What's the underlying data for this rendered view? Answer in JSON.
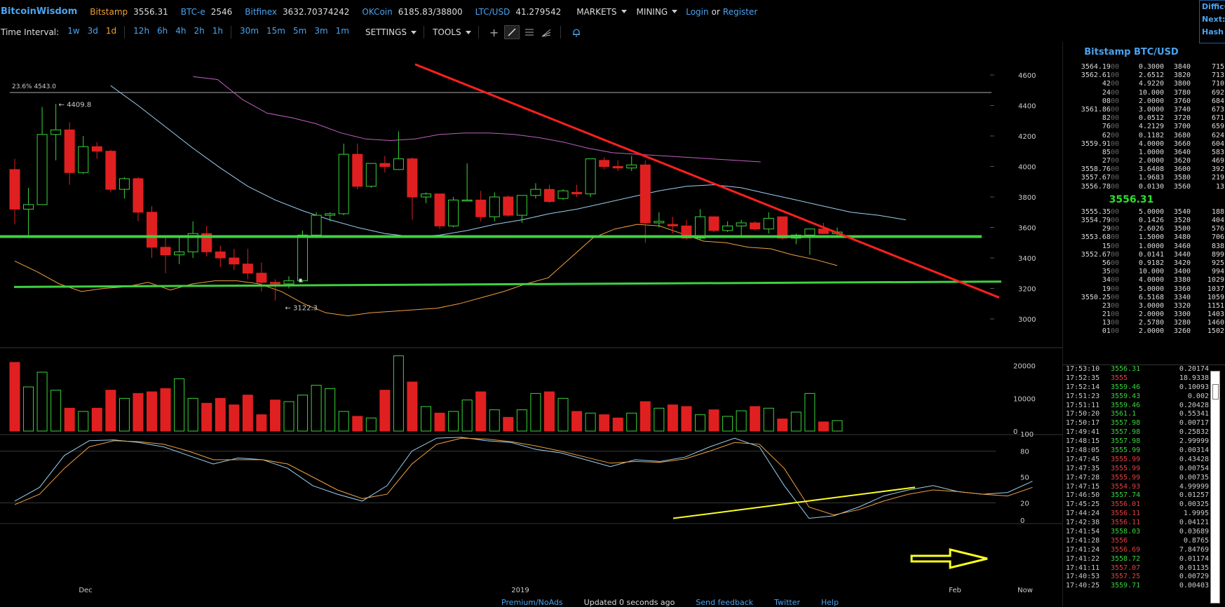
{
  "topbar": {
    "brand": "BitcoinWisdom",
    "tickers": [
      {
        "name": "Bitstamp",
        "value": "3556.31",
        "color": "#f0a030"
      },
      {
        "name": "BTC-e",
        "value": "2546",
        "color": "#4aa3f0"
      },
      {
        "name": "Bitfinex",
        "value": "3632.70374242",
        "color": "#4aa3f0"
      },
      {
        "name": "OKCoin",
        "value": "6185.83/38800",
        "color": "#4aa3f0"
      },
      {
        "name": "LTC/USD",
        "value": "41.279542",
        "color": "#4aa3f0"
      }
    ],
    "markets": "MARKETS",
    "mining": "MINING",
    "login": "Login",
    "or": "or",
    "register": "Register"
  },
  "difficulty": {
    "l1": "Difficu",
    "l2": "Next:",
    "l3": "Hash R"
  },
  "toolbar": {
    "time_interval": "Time Interval:",
    "intervals": [
      "1w",
      "3d",
      "1d",
      "12h",
      "6h",
      "4h",
      "2h",
      "1h",
      "30m",
      "15m",
      "5m",
      "3m",
      "1m"
    ],
    "active_interval": "1d",
    "settings": "SETTINGS",
    "tools": "TOOLS"
  },
  "chart_data": {
    "type": "candlestick",
    "fib_label": "23.6% 4543.0",
    "high_label": "← 4409.8",
    "low_label": "← 3122.3",
    "price_axis": [
      "4600",
      "4400",
      "4200",
      "4000",
      "3800",
      "3600",
      "3400",
      "3200",
      "3000"
    ],
    "volume_axis": [
      "20000",
      "10000",
      "0"
    ],
    "osc_axis": [
      "100",
      "80",
      "50",
      "20",
      "0"
    ],
    "x_labels": [
      "Dec",
      "2019",
      "Feb",
      "Now"
    ],
    "colors": {
      "up": "#3ad43a",
      "down": "#e02020",
      "upper_band": "#c060c0",
      "mid_band": "#9ad0f0",
      "lower_band": "#f0a040",
      "trend_down": "#ff2020",
      "support": "#40d040",
      "annotation": "#ffff20"
    },
    "candles": [
      [
        3980,
        4050,
        3620,
        3720
      ],
      [
        3720,
        3860,
        3540,
        3750
      ],
      [
        3750,
        4390,
        3750,
        4210
      ],
      [
        4210,
        4410,
        4040,
        4240
      ],
      [
        4240,
        4290,
        3880,
        3960
      ],
      [
        3960,
        4200,
        3950,
        4130
      ],
      [
        4130,
        4160,
        4050,
        4100
      ],
      [
        4100,
        4110,
        3830,
        3850
      ],
      [
        3850,
        3930,
        3790,
        3920
      ],
      [
        3920,
        3930,
        3640,
        3700
      ],
      [
        3700,
        3740,
        3400,
        3470
      ],
      [
        3470,
        3540,
        3300,
        3420
      ],
      [
        3420,
        3540,
        3360,
        3440
      ],
      [
        3440,
        3640,
        3400,
        3560
      ],
      [
        3560,
        3610,
        3410,
        3440
      ],
      [
        3440,
        3480,
        3340,
        3400
      ],
      [
        3400,
        3460,
        3320,
        3360
      ],
      [
        3360,
        3460,
        3260,
        3300
      ],
      [
        3300,
        3370,
        3180,
        3240
      ],
      [
        3240,
        3260,
        3120,
        3230
      ],
      [
        3230,
        3280,
        3200,
        3250
      ],
      [
        3250,
        3580,
        3240,
        3550
      ],
      [
        3550,
        3700,
        3530,
        3680
      ],
      [
        3680,
        3700,
        3640,
        3690
      ],
      [
        3690,
        4150,
        3680,
        4080
      ],
      [
        4080,
        4150,
        3850,
        3870
      ],
      [
        3870,
        4020,
        3860,
        4020
      ],
      [
        4020,
        4070,
        3960,
        4000
      ],
      [
        3980,
        4230,
        3980,
        4050
      ],
      [
        4050,
        4060,
        3650,
        3800
      ],
      [
        3800,
        3830,
        3760,
        3820
      ],
      [
        3820,
        3820,
        3590,
        3610
      ],
      [
        3610,
        3800,
        3600,
        3780
      ],
      [
        3780,
        4020,
        3770,
        3780
      ],
      [
        3780,
        3840,
        3640,
        3670
      ],
      [
        3670,
        3830,
        3640,
        3800
      ],
      [
        3800,
        3810,
        3670,
        3680
      ],
      [
        3680,
        3810,
        3630,
        3810
      ],
      [
        3810,
        3890,
        3790,
        3850
      ],
      [
        3850,
        3880,
        3760,
        3770
      ],
      [
        3790,
        3850,
        3780,
        3840
      ],
      [
        3830,
        3880,
        3800,
        3820
      ],
      [
        3820,
        4040,
        3800,
        4050
      ],
      [
        4040,
        4060,
        3980,
        4000
      ],
      [
        4000,
        4040,
        3970,
        3990
      ],
      [
        3990,
        4070,
        3970,
        4010
      ],
      [
        4010,
        4040,
        3500,
        3630
      ],
      [
        3630,
        3700,
        3600,
        3640
      ],
      [
        3620,
        3670,
        3560,
        3610
      ],
      [
        3610,
        3650,
        3520,
        3530
      ],
      [
        3530,
        3720,
        3520,
        3670
      ],
      [
        3670,
        3670,
        3570,
        3580
      ],
      [
        3580,
        3640,
        3570,
        3610
      ],
      [
        3610,
        3650,
        3540,
        3630
      ],
      [
        3630,
        3640,
        3580,
        3590
      ],
      [
        3590,
        3700,
        3560,
        3660
      ],
      [
        3670,
        3670,
        3520,
        3530
      ],
      [
        3530,
        3560,
        3490,
        3550
      ],
      [
        3550,
        3590,
        3420,
        3590
      ],
      [
        3590,
        3630,
        3560,
        3560
      ],
      [
        3560,
        3600,
        3540,
        3570
      ]
    ],
    "volumes": [
      21000,
      13500,
      18000,
      12500,
      7000,
      6000,
      7000,
      12500,
      10000,
      11500,
      12000,
      13000,
      16000,
      10000,
      8500,
      10000,
      8000,
      11000,
      5000,
      9500,
      9000,
      11000,
      14000,
      13000,
      6000,
      4500,
      4000,
      12500,
      23000,
      15000,
      7500,
      5500,
      6000,
      9500,
      12000,
      6500,
      4200,
      6500,
      11500,
      12000,
      10000,
      6000,
      5500,
      5000,
      4000,
      5500,
      9000,
      7000,
      8000,
      7500,
      5000,
      6500,
      4500,
      6200,
      7500,
      7000,
      3700,
      5800,
      11500,
      2800,
      3200
    ],
    "mid_band": [
      4530,
      4400,
      4260,
      4120,
      3990,
      3870,
      3780,
      3710,
      3650,
      3600,
      3560,
      3540,
      3550,
      3580,
      3620,
      3650,
      3690,
      3720,
      3760,
      3800,
      3840,
      3870,
      3880,
      3860,
      3820,
      3780,
      3740,
      3700,
      3680,
      3650
    ],
    "upper_band": [
      4590,
      4570,
      4440,
      4350,
      4320,
      4280,
      4220,
      4180,
      4170,
      4180,
      4210,
      4220,
      4220,
      4210,
      4190,
      4160,
      4120,
      4090,
      4080,
      4070,
      4060,
      4050,
      4040,
      4030
    ],
    "lower_band": [
      3380,
      3310,
      3230,
      3180,
      3200,
      3210,
      3240,
      3190,
      3230,
      3250,
      3250,
      3230,
      3180,
      3100,
      3040,
      3020,
      3040,
      3050,
      3060,
      3070,
      3100,
      3140,
      3180,
      3230,
      3270,
      3400,
      3530,
      3590,
      3620,
      3610,
      3560,
      3510,
      3500,
      3470,
      3460,
      3420,
      3390,
      3350
    ],
    "osc_k": [
      22,
      38,
      75,
      92,
      93,
      90,
      85,
      75,
      65,
      72,
      70,
      60,
      40,
      30,
      22,
      40,
      80,
      95,
      96,
      92,
      90,
      82,
      78,
      70,
      62,
      70,
      68,
      73,
      85,
      95,
      85,
      40,
      2,
      5,
      15,
      28,
      35,
      40,
      33,
      30,
      32,
      45
    ],
    "osc_d": [
      18,
      30,
      60,
      85,
      92,
      91,
      88,
      80,
      70,
      70,
      70,
      65,
      50,
      35,
      25,
      30,
      65,
      88,
      95,
      94,
      91,
      86,
      80,
      73,
      66,
      68,
      67,
      71,
      80,
      90,
      88,
      60,
      15,
      6,
      12,
      22,
      30,
      35,
      33,
      30,
      28,
      38
    ]
  },
  "right_panel": {
    "title": "Bitstamp BTC/USD",
    "asks": [
      [
        "3564.19",
        "00",
        "0.3000",
        "3840",
        "715"
      ],
      [
        "3562.61",
        "00",
        "2.6512",
        "3820",
        "713"
      ],
      [
        "42",
        "00",
        "4.9220",
        "3800",
        "710"
      ],
      [
        "24",
        "00",
        "10.000",
        "3780",
        "692"
      ],
      [
        "08",
        "00",
        "2.0000",
        "3760",
        "684"
      ],
      [
        "3561.86",
        "00",
        "3.0000",
        "3740",
        "673"
      ],
      [
        "82",
        "00",
        "0.0512",
        "3720",
        "671"
      ],
      [
        "76",
        "00",
        "4.2129",
        "3700",
        "659"
      ],
      [
        "62",
        "00",
        "0.1182",
        "3680",
        "624"
      ],
      [
        "3559.91",
        "00",
        "4.0000",
        "3660",
        "604"
      ],
      [
        "85",
        "00",
        "1.0000",
        "3640",
        "583"
      ],
      [
        "27",
        "00",
        "2.0000",
        "3620",
        "469"
      ],
      [
        "3558.76",
        "00",
        "3.6408",
        "3600",
        "392"
      ],
      [
        "3557.67",
        "00",
        "1.9683",
        "3580",
        "219"
      ],
      [
        "3556.78",
        "00",
        "0.0130",
        "3560",
        "13"
      ]
    ],
    "last_price": "3556.31",
    "bids": [
      [
        "3555.35",
        "00",
        "5.0000",
        "3540",
        "188"
      ],
      [
        "3554.79",
        "00",
        "0.1426",
        "3520",
        "404"
      ],
      [
        "29",
        "00",
        "2.6026",
        "3500",
        "576"
      ],
      [
        "3553.68",
        "00",
        "1.5000",
        "3480",
        "706"
      ],
      [
        "15",
        "00",
        "1.0000",
        "3460",
        "838"
      ],
      [
        "3552.67",
        "00",
        "0.0141",
        "3440",
        "899"
      ],
      [
        "56",
        "00",
        "0.9182",
        "3420",
        "925"
      ],
      [
        "35",
        "00",
        "10.000",
        "3400",
        "994"
      ],
      [
        "34",
        "00",
        "4.0000",
        "3380",
        "1029"
      ],
      [
        "19",
        "00",
        "5.0000",
        "3360",
        "1037"
      ],
      [
        "3550.25",
        "00",
        "6.5168",
        "3340",
        "1059"
      ],
      [
        "23",
        "00",
        "3.0000",
        "3320",
        "1151"
      ],
      [
        "21",
        "00",
        "2.0000",
        "3300",
        "1403"
      ],
      [
        "13",
        "00",
        "2.5780",
        "3280",
        "1460"
      ],
      [
        "01",
        "00",
        "2.0000",
        "3260",
        "1502"
      ]
    ],
    "trades": [
      [
        "17:53:10",
        "3556.31",
        "up",
        "0.20174"
      ],
      [
        "17:52:35",
        "3555",
        "down",
        "18.9338"
      ],
      [
        "17:52:14",
        "3559.46",
        "up",
        "0.10093"
      ],
      [
        "17:51:23",
        "3559.43",
        "up",
        "0.002"
      ],
      [
        "17:51:11",
        "3559.46",
        "up",
        "0.20428"
      ],
      [
        "17:50:20",
        "3561.1",
        "up",
        "0.55341"
      ],
      [
        "17:50:17",
        "3557.98",
        "up",
        "0.00717"
      ],
      [
        "17:49:41",
        "3557.98",
        "up",
        "0.25832"
      ],
      [
        "17:48:15",
        "3557.98",
        "up",
        "2.99999"
      ],
      [
        "17:48:05",
        "3555.99",
        "up",
        "0.00314"
      ],
      [
        "17:47:45",
        "3555.99",
        "down",
        "0.43428"
      ],
      [
        "17:47:35",
        "3555.99",
        "down",
        "0.00754"
      ],
      [
        "17:47:28",
        "3555.99",
        "down",
        "0.00735"
      ],
      [
        "17:47:15",
        "3554.93",
        "down",
        "4.99999"
      ],
      [
        "17:46:50",
        "3557.74",
        "up",
        "0.01257"
      ],
      [
        "17:45:25",
        "3556.01",
        "down",
        "0.00325"
      ],
      [
        "17:44:24",
        "3556.11",
        "down",
        "1.9995"
      ],
      [
        "17:42:38",
        "3556.11",
        "down",
        "0.04121"
      ],
      [
        "17:41:54",
        "3558.03",
        "up",
        "0.03689"
      ],
      [
        "17:41:28",
        "3556",
        "down",
        "0.8765"
      ],
      [
        "17:41:24",
        "3556.69",
        "down",
        "7.84769"
      ],
      [
        "17:41:22",
        "3558.72",
        "up",
        "0.01174"
      ],
      [
        "17:41:11",
        "3557.07",
        "down",
        "0.01135"
      ],
      [
        "17:40:53",
        "3557.25",
        "down",
        "0.00729"
      ],
      [
        "17:40:25",
        "3559.71",
        "up",
        "0.00403"
      ]
    ]
  },
  "footer": {
    "premium": "Premium/NoAds",
    "updated": "Updated 0 seconds ago",
    "feedback": "Send feedback",
    "twitter": "Twitter",
    "help": "Help"
  }
}
